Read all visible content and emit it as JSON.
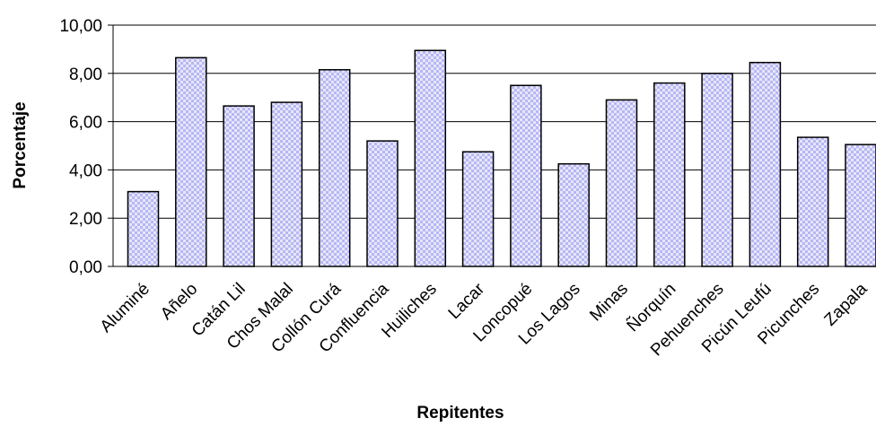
{
  "chart_data": {
    "type": "bar",
    "title": "",
    "xlabel": "Repitentes",
    "ylabel": "Porcentaje",
    "ylim": [
      0,
      10
    ],
    "yticks": [
      "0,00",
      "2,00",
      "4,00",
      "6,00",
      "8,00",
      "10,00"
    ],
    "grid": true,
    "legend": "none",
    "bar_fill": "#b7b7f2",
    "bar_fill_alt": "#e6e6fb",
    "categories": [
      "Aluminé",
      "Añelo",
      "Catán Lil",
      "Chos Malal",
      "Collón Curá",
      "Confluencia",
      "Huiliches",
      "Lacar",
      "Loncopué",
      "Los Lagos",
      "Minas",
      "Ñorquín",
      "Pehuenches",
      "Picún Leufú",
      "Picunches",
      "Zapala"
    ],
    "values": [
      3.1,
      8.65,
      6.65,
      6.8,
      8.15,
      5.2,
      8.95,
      4.75,
      7.5,
      4.25,
      6.9,
      7.6,
      8.0,
      8.45,
      5.35,
      5.05
    ]
  }
}
